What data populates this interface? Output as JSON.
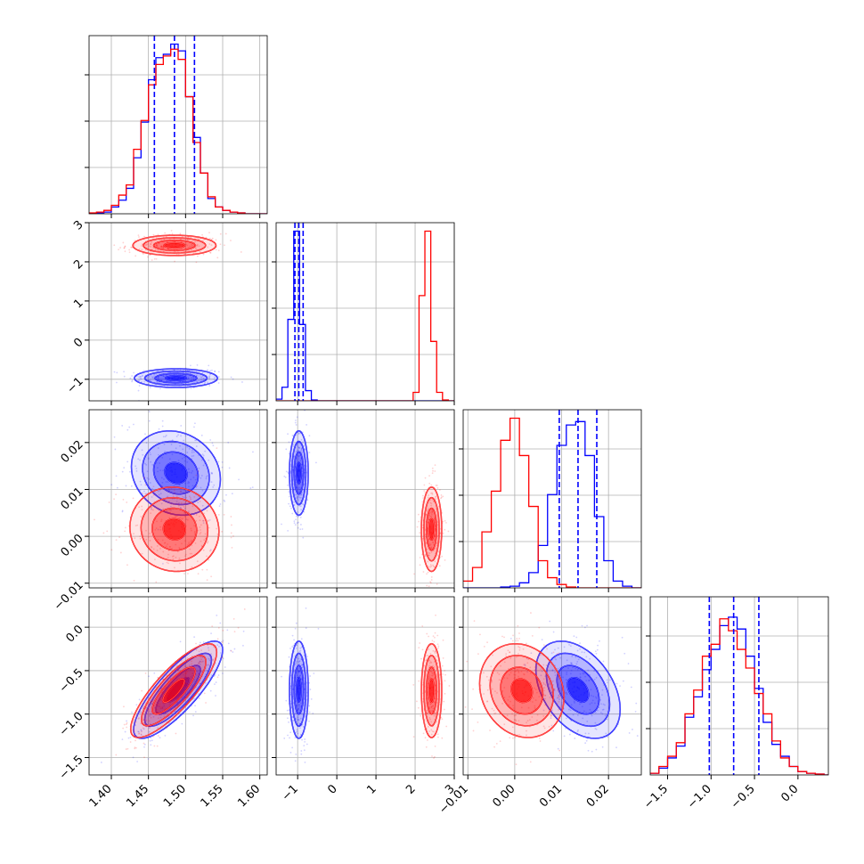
{
  "colors": {
    "blue": "#0000ff",
    "red": "#ff0000",
    "grid": "#b0b0b0",
    "axis": "#000000"
  },
  "chart_data": {
    "type": "corner",
    "grid": true,
    "series": [
      {
        "color": "blue"
      },
      {
        "color": "red"
      }
    ],
    "params": [
      {
        "lim": [
          1.37,
          1.61
        ],
        "ticks": [
          1.4,
          1.45,
          1.5,
          1.55,
          1.6
        ],
        "tick_labels": [
          "1.40",
          "1.45",
          "1.50",
          "1.55",
          "1.60"
        ]
      },
      {
        "lim": [
          -1.55,
          3.0
        ],
        "ticks": [
          -1,
          0,
          1,
          2,
          3
        ],
        "tick_labels": [
          "−1",
          "0",
          "1",
          "2",
          "3"
        ]
      },
      {
        "lim": [
          -0.011,
          0.027
        ],
        "ticks": [
          -0.01,
          0.0,
          0.01,
          0.02
        ],
        "tick_labels": [
          "−0.01",
          "0.00",
          "0.01",
          "0.02"
        ]
      },
      {
        "lim": [
          -1.7,
          0.35
        ],
        "ticks": [
          -1.5,
          -1.0,
          -0.5,
          0.0
        ],
        "tick_labels": [
          "−1.5",
          "−1.0",
          "−0.5",
          "0.0"
        ]
      }
    ],
    "blue_quantiles": [
      [
        1.458,
        1.485,
        1.512
      ],
      [
        -1.07,
        -0.97,
        -0.86
      ],
      [
        0.0095,
        0.0135,
        0.0175
      ],
      [
        -1.02,
        -0.74,
        -0.45
      ]
    ],
    "histograms": [
      {
        "bins": [
          1.37,
          1.38,
          1.39,
          1.4,
          1.41,
          1.42,
          1.43,
          1.44,
          1.45,
          1.46,
          1.47,
          1.48,
          1.49,
          1.5,
          1.51,
          1.52,
          1.53,
          1.54,
          1.55,
          1.56,
          1.57,
          1.58,
          1.59,
          1.6,
          1.61
        ],
        "blue": [
          0,
          0.005,
          0.01,
          0.04,
          0.08,
          0.15,
          0.33,
          0.54,
          0.79,
          0.92,
          0.94,
          1.0,
          0.96,
          0.69,
          0.45,
          0.24,
          0.09,
          0.04,
          0.02,
          0.01,
          0.005,
          0,
          0,
          0
        ],
        "red": [
          0.005,
          0.01,
          0.02,
          0.05,
          0.11,
          0.17,
          0.38,
          0.55,
          0.76,
          0.88,
          0.93,
          0.97,
          0.91,
          0.69,
          0.42,
          0.24,
          0.1,
          0.04,
          0.02,
          0.01,
          0.005,
          0,
          0,
          0
        ]
      },
      {
        "bins": [
          -1.55,
          -1.4,
          -1.25,
          -1.1,
          -0.95,
          -0.8,
          -0.65,
          -0.5,
          1.95,
          2.1,
          2.25,
          2.4,
          2.55,
          2.7,
          2.85,
          3.0
        ],
        "blue": [
          0.01,
          0.08,
          0.48,
          1.0,
          0.45,
          0.06,
          0.005,
          0,
          0,
          0,
          0,
          0,
          0,
          0,
          0
        ],
        "red": [
          0,
          0,
          0,
          0,
          0,
          0,
          0,
          0,
          0.05,
          0.62,
          1.0,
          0.35,
          0.05,
          0.005,
          0
        ],
        "gap_level": 0.005
      },
      {
        "bins": [
          -0.011,
          -0.009,
          -0.007,
          -0.005,
          -0.003,
          -0.001,
          0.001,
          0.003,
          0.005,
          0.007,
          0.009,
          0.011,
          0.013,
          0.015,
          0.017,
          0.019,
          0.021,
          0.023,
          0.025,
          0.027
        ],
        "blue": [
          0,
          0,
          0,
          0,
          0.005,
          0.01,
          0.03,
          0.09,
          0.25,
          0.55,
          0.84,
          0.96,
          0.98,
          0.78,
          0.42,
          0.16,
          0.04,
          0.01,
          0
        ],
        "red": [
          0.04,
          0.12,
          0.33,
          0.57,
          0.87,
          1.0,
          0.78,
          0.48,
          0.16,
          0.06,
          0.02,
          0.005,
          0,
          0,
          0,
          0,
          0,
          0,
          0
        ]
      },
      {
        "bins": [
          -1.7,
          -1.6,
          -1.5,
          -1.4,
          -1.3,
          -1.2,
          -1.1,
          -1.0,
          -0.9,
          -0.8,
          -0.7,
          -0.6,
          -0.5,
          -0.4,
          -0.3,
          -0.2,
          -0.1,
          0.0,
          0.1,
          0.2,
          0.3,
          0.35
        ],
        "blue": [
          0.01,
          0.04,
          0.1,
          0.17,
          0.34,
          0.46,
          0.62,
          0.74,
          0.88,
          0.93,
          0.86,
          0.7,
          0.51,
          0.31,
          0.18,
          0.11,
          0.05,
          0.02,
          0.01,
          0.005,
          0
        ],
        "red": [
          0.01,
          0.05,
          0.11,
          0.19,
          0.36,
          0.5,
          0.7,
          0.77,
          0.92,
          0.85,
          0.74,
          0.63,
          0.48,
          0.36,
          0.2,
          0.1,
          0.05,
          0.02,
          0.01,
          0.005,
          0
        ]
      }
    ],
    "pairs": [
      {
        "x": 0,
        "y": 1,
        "blue": {
          "mean": [
            1.487,
            -0.97
          ],
          "sd": [
            0.028,
            0.12
          ],
          "corr": 0
        },
        "red": {
          "mean": [
            1.485,
            2.42
          ],
          "sd": [
            0.028,
            0.13
          ],
          "corr": 0
        }
      },
      {
        "x": 0,
        "y": 2,
        "blue": {
          "mean": [
            1.487,
            0.0135
          ],
          "sd": [
            0.03,
            0.0045
          ],
          "corr": -0.15
        },
        "red": {
          "mean": [
            1.485,
            0.0015
          ],
          "sd": [
            0.03,
            0.0045
          ],
          "corr": -0.05
        }
      },
      {
        "x": 1,
        "y": 2,
        "blue": {
          "mean": [
            -0.97,
            0.0135
          ],
          "sd": [
            0.12,
            0.0045
          ],
          "corr": 0
        },
        "red": {
          "mean": [
            2.42,
            0.0015
          ],
          "sd": [
            0.13,
            0.0045
          ],
          "corr": 0
        }
      },
      {
        "x": 0,
        "y": 3,
        "blue": {
          "mean": [
            1.49,
            -0.72
          ],
          "sd": [
            0.03,
            0.28
          ],
          "corr": 0.82
        },
        "red": {
          "mean": [
            1.484,
            -0.73
          ],
          "sd": [
            0.029,
            0.27
          ],
          "corr": 0.82
        }
      },
      {
        "x": 1,
        "y": 3,
        "blue": {
          "mean": [
            -0.97,
            -0.72
          ],
          "sd": [
            0.12,
            0.28
          ],
          "corr": 0
        },
        "red": {
          "mean": [
            2.42,
            -0.73
          ],
          "sd": [
            0.13,
            0.27
          ],
          "corr": 0
        }
      },
      {
        "x": 2,
        "y": 3,
        "blue": {
          "mean": [
            0.0135,
            -0.72
          ],
          "sd": [
            0.0045,
            0.28
          ],
          "corr": -0.4
        },
        "red": {
          "mean": [
            0.0015,
            -0.73
          ],
          "sd": [
            0.0045,
            0.27
          ],
          "corr": -0.15
        }
      }
    ]
  }
}
